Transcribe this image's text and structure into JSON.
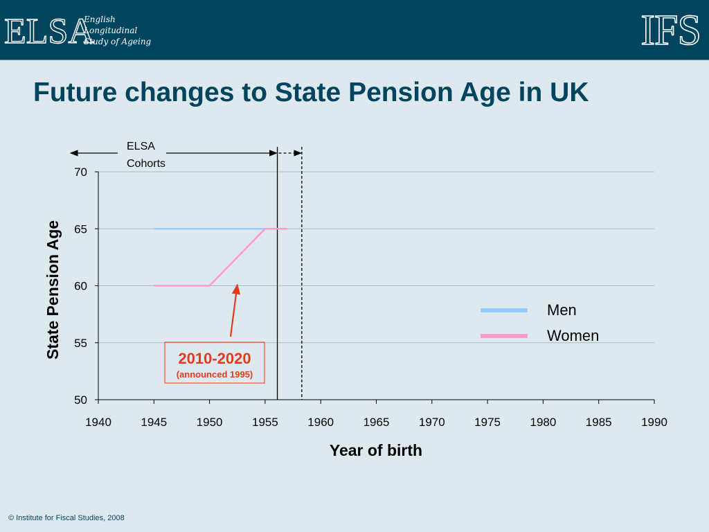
{
  "header": {
    "elsa_logo_text": "ELSA",
    "elsa_subtitle": [
      "English",
      "Longitudinal",
      "Study of Ageing"
    ],
    "ifs_logo_text": "IFS"
  },
  "title": "Future changes to State Pension Age in UK",
  "footer": "© Institute for Fiscal Studies, 2008",
  "colors": {
    "header_bg": "#01445e",
    "men": "#99ccff",
    "women": "#ff99cc",
    "annotation_red": "#e53a1c",
    "title": "#01445e"
  },
  "chart_data": {
    "type": "line",
    "xlabel": "Year of birth",
    "ylabel": "State Pension Age",
    "xlim": [
      1940,
      1990
    ],
    "ylim": [
      50,
      70
    ],
    "xticks": [
      1940,
      1945,
      1950,
      1955,
      1960,
      1965,
      1970,
      1975,
      1980,
      1985,
      1990
    ],
    "yticks": [
      50,
      55,
      60,
      65,
      70
    ],
    "grid": "horizontal",
    "legend_position": "right",
    "series": [
      {
        "name": "Men",
        "color": "#99ccff",
        "x": [
          1945,
          1957
        ],
        "y": [
          65,
          65
        ]
      },
      {
        "name": "Women",
        "color": "#ff99cc",
        "x": [
          1945,
          1950,
          1955,
          1957
        ],
        "y": [
          60,
          60,
          65,
          65
        ]
      }
    ],
    "cohort_lines": [
      {
        "x": 1956.1,
        "style": "solid"
      },
      {
        "x": 1958.3,
        "style": "dashed"
      }
    ],
    "annotations": {
      "elsa_cohorts": {
        "lines": [
          "ELSA",
          "Cohorts"
        ]
      },
      "callout": {
        "main": "2010-2020",
        "sub": "(announced 1995)",
        "arrow_target": {
          "x": 1952.5,
          "y": 60.1
        }
      }
    }
  }
}
